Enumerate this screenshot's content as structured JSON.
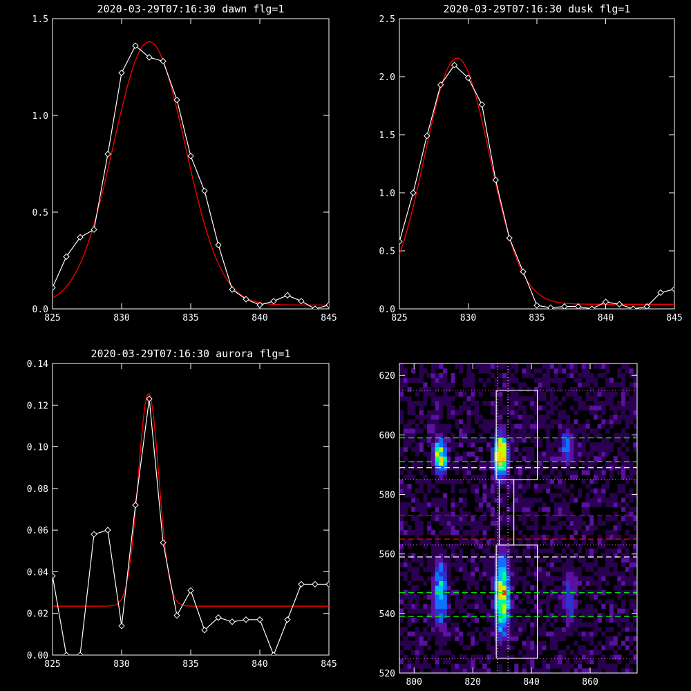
{
  "chart_data": [
    {
      "type": "line",
      "title": "2020-03-29T07:16:30 dawn flg=1",
      "xlim": [
        825,
        845
      ],
      "ylim": [
        0,
        1.5
      ],
      "xticks": [
        825,
        830,
        835,
        840,
        845
      ],
      "xtick_labels": [
        "825",
        "830",
        "835",
        "840",
        "845"
      ],
      "yticks": [
        0,
        0.5,
        1.0,
        1.5
      ],
      "ytick_labels": [
        "0.0",
        "0.5",
        "1.0",
        "1.5"
      ],
      "series": [
        {
          "role": "observed",
          "color": "#ffffff",
          "marker": "diamond",
          "x": [
            825,
            826,
            827,
            828,
            829,
            830,
            831,
            832,
            833,
            834,
            835,
            836,
            837,
            838,
            839,
            840,
            841,
            842,
            843,
            844,
            845
          ],
          "y": [
            0.11,
            0.27,
            0.37,
            0.41,
            0.8,
            1.22,
            1.36,
            1.3,
            1.28,
            1.08,
            0.79,
            0.61,
            0.33,
            0.1,
            0.05,
            0.02,
            0.04,
            0.07,
            0.04,
            0.0,
            0.02
          ]
        },
        {
          "role": "fit",
          "color": "#ff0000",
          "marker": "none",
          "model": "gaussian",
          "params": {
            "amplitude": 1.36,
            "center": 832.0,
            "sigma": 2.6,
            "offset": 0.02
          }
        }
      ]
    },
    {
      "type": "line",
      "title": "2020-03-29T07:16:30 dusk flg=1",
      "xlim": [
        825,
        845
      ],
      "ylim": [
        0,
        2.5
      ],
      "xticks": [
        825,
        830,
        835,
        840,
        845
      ],
      "xtick_labels": [
        "825",
        "830",
        "835",
        "840",
        "845"
      ],
      "yticks": [
        0,
        0.5,
        1.0,
        1.5,
        2.0,
        2.5
      ],
      "ytick_labels": [
        "0.0",
        "0.5",
        "1.0",
        "1.5",
        "2.0",
        "2.5"
      ],
      "series": [
        {
          "role": "observed",
          "color": "#ffffff",
          "marker": "diamond",
          "x": [
            825,
            826,
            827,
            828,
            829,
            830,
            831,
            832,
            833,
            834,
            835,
            836,
            837,
            838,
            839,
            840,
            841,
            842,
            843,
            844,
            845
          ],
          "y": [
            0.58,
            1.0,
            1.49,
            1.93,
            2.1,
            1.99,
            1.76,
            1.11,
            0.61,
            0.32,
            0.03,
            0.01,
            0.02,
            0.02,
            0.0,
            0.06,
            0.04,
            0.0,
            0.02,
            0.14,
            0.17
          ]
        },
        {
          "role": "fit",
          "color": "#ff0000",
          "marker": "none",
          "model": "gaussian",
          "params": {
            "amplitude": 2.12,
            "center": 829.2,
            "sigma": 2.35,
            "offset": 0.04
          }
        }
      ]
    },
    {
      "type": "line",
      "title": "2020-03-29T07:16:30 aurora flg=1",
      "xlim": [
        825,
        845
      ],
      "ylim": [
        0,
        0.14
      ],
      "xticks": [
        825,
        830,
        835,
        840,
        845
      ],
      "xtick_labels": [
        "825",
        "830",
        "835",
        "840",
        "845"
      ],
      "yticks": [
        0,
        0.02,
        0.04,
        0.06,
        0.08,
        0.1,
        0.12,
        0.14
      ],
      "ytick_labels": [
        "0.00",
        "0.02",
        "0.04",
        "0.06",
        "0.08",
        "0.10",
        "0.12",
        "0.14"
      ],
      "series": [
        {
          "role": "observed",
          "color": "#ffffff",
          "marker": "diamond",
          "x": [
            825,
            826,
            827,
            828,
            829,
            830,
            831,
            832,
            833,
            834,
            835,
            836,
            837,
            838,
            839,
            840,
            841,
            842,
            843,
            844,
            845
          ],
          "y": [
            0.038,
            0.0,
            0.0,
            0.058,
            0.06,
            0.014,
            0.072,
            0.123,
            0.054,
            0.019,
            0.031,
            0.012,
            0.018,
            0.016,
            0.017,
            0.017,
            0.0,
            0.017,
            0.034,
            0.034,
            0.034
          ]
        },
        {
          "role": "fit",
          "color": "#ff0000",
          "marker": "none",
          "model": "gaussian",
          "params": {
            "amplitude": 0.102,
            "center": 831.95,
            "sigma": 0.75,
            "offset": 0.0235
          }
        }
      ]
    },
    {
      "type": "heatmap",
      "xlim": [
        795,
        876
      ],
      "ylim": [
        520,
        624
      ],
      "xticks": [
        800,
        820,
        840,
        860
      ],
      "xtick_labels": [
        "800",
        "820",
        "840",
        "860"
      ],
      "yticks": [
        520,
        540,
        560,
        580,
        600,
        620
      ],
      "ytick_labels": [
        "520",
        "540",
        "560",
        "580",
        "600",
        "620"
      ],
      "colormap": [
        "#000000",
        "#2a0050",
        "#5a10a0",
        "#3030d0",
        "#1070ff",
        "#00c0ff",
        "#00ff90",
        "#c0ff00",
        "#ffd000",
        "#ff3000"
      ],
      "emission_blobs": [
        {
          "x": 809,
          "y": 593,
          "sx": 2.0,
          "sy": 4.5,
          "peak": 0.75
        },
        {
          "x": 829.5,
          "y": 593,
          "sx": 1.8,
          "sy": 5.5,
          "peak": 1.0
        },
        {
          "x": 852,
          "y": 596,
          "sx": 2.0,
          "sy": 4.5,
          "peak": 0.45
        },
        {
          "x": 809,
          "y": 547,
          "sx": 1.9,
          "sy": 9.0,
          "peak": 0.6
        },
        {
          "x": 830,
          "y": 546,
          "sx": 2.0,
          "sy": 10.5,
          "peak": 0.85
        },
        {
          "x": 853,
          "y": 546,
          "sx": 2.0,
          "sy": 8.0,
          "peak": 0.4
        }
      ],
      "white_boxes": [
        {
          "x0": 828,
          "x1": 842,
          "y0": 585,
          "y1": 615
        },
        {
          "x0": 829,
          "x1": 834,
          "y0": 563,
          "y1": 585
        },
        {
          "x0": 828,
          "x1": 842,
          "y0": 525,
          "y1": 563
        }
      ],
      "dotted_vertical_x": [
        828.5,
        832
      ],
      "dotted_horizontal_y": [
        615,
        585,
        563,
        525
      ],
      "green_dashed_y": [
        599,
        591,
        547,
        539
      ],
      "white_dashed_y": [
        589,
        559
      ],
      "red_dashed_y": [
        573,
        565
      ]
    }
  ]
}
